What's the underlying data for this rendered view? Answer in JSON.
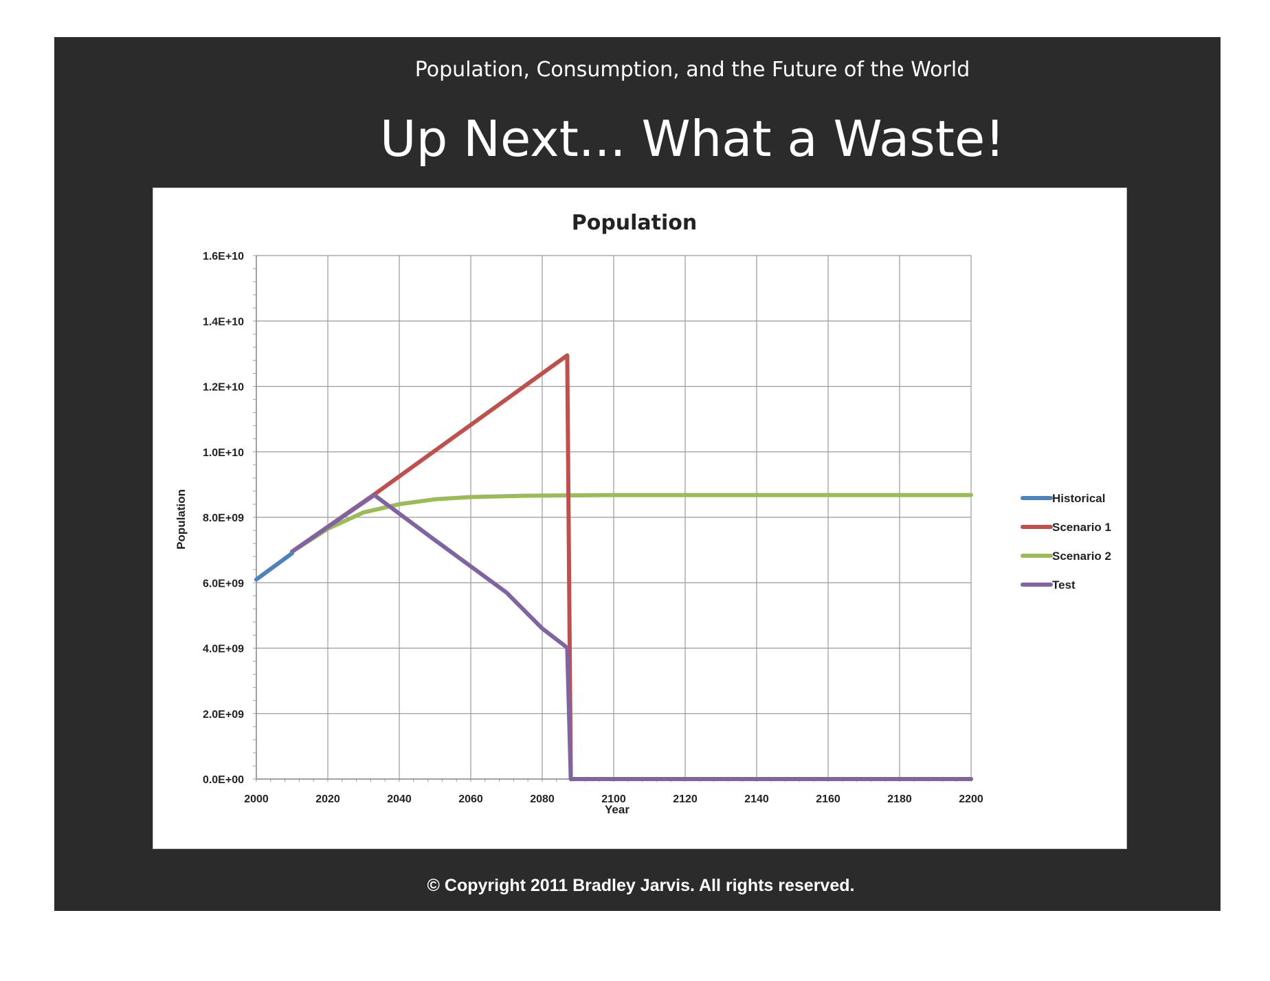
{
  "slide": {
    "subtitle": "Population, Consumption, and the Future of the World",
    "title": "Up Next... What a Waste!",
    "copyright": "© Copyright 2011 Bradley Jarvis.  All rights reserved.",
    "background_color": "#2b2b2b"
  },
  "chart_data": {
    "type": "line",
    "title": "Population",
    "xlabel": "Year",
    "ylabel": "Population",
    "xlim": [
      2000,
      2200
    ],
    "ylim": [
      0,
      16000000000
    ],
    "x_ticks": [
      2000,
      2020,
      2040,
      2060,
      2080,
      2100,
      2120,
      2140,
      2160,
      2180,
      2200
    ],
    "y_ticks": [
      0,
      2000000000,
      4000000000,
      6000000000,
      8000000000,
      10000000000,
      12000000000,
      14000000000,
      16000000000
    ],
    "y_tick_labels": [
      "0.0E+00",
      "2.0E+09",
      "4.0E+09",
      "6.0E+09",
      "8.0E+09",
      "1.0E+10",
      "1.2E+10",
      "1.4E+10",
      "1.6E+10"
    ],
    "grid": true,
    "legend_position": "right",
    "series": [
      {
        "name": "Historical",
        "color": "#4f81bd",
        "points": [
          [
            2000,
            6100000000
          ],
          [
            2005,
            6500000000
          ],
          [
            2010,
            6900000000
          ]
        ]
      },
      {
        "name": "Scenario 1",
        "color": "#c0504d",
        "points": [
          [
            2010,
            6950000000
          ],
          [
            2033,
            8700000000
          ],
          [
            2087,
            12950000000
          ],
          [
            2088,
            0
          ],
          [
            2200,
            0
          ]
        ]
      },
      {
        "name": "Scenario 2",
        "color": "#9bbb59",
        "points": [
          [
            2010,
            6950000000
          ],
          [
            2020,
            7650000000
          ],
          [
            2030,
            8150000000
          ],
          [
            2040,
            8400000000
          ],
          [
            2050,
            8550000000
          ],
          [
            2060,
            8620000000
          ],
          [
            2075,
            8660000000
          ],
          [
            2100,
            8680000000
          ],
          [
            2200,
            8680000000
          ]
        ]
      },
      {
        "name": "Test",
        "color": "#8064a2",
        "points": [
          [
            2010,
            6950000000
          ],
          [
            2033,
            8680000000
          ],
          [
            2050,
            7300000000
          ],
          [
            2070,
            5700000000
          ],
          [
            2080,
            4600000000
          ],
          [
            2086,
            4100000000
          ],
          [
            2087,
            4000000000
          ],
          [
            2088,
            0
          ],
          [
            2200,
            0
          ]
        ]
      }
    ]
  }
}
